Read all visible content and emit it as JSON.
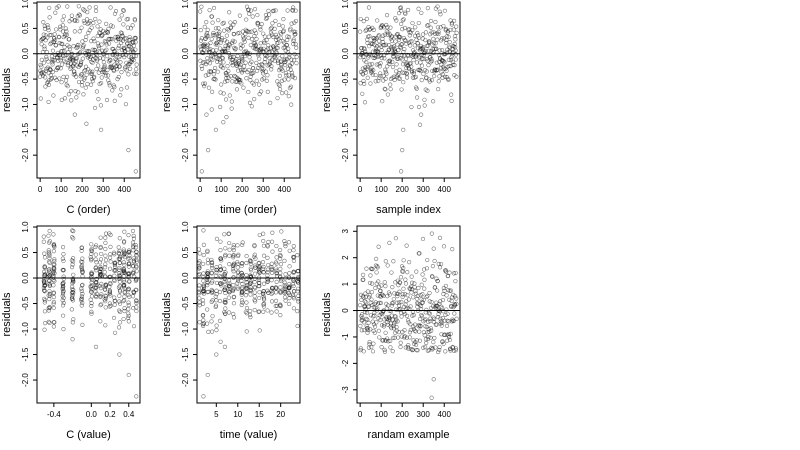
{
  "chart_data": [
    {
      "type": "scatter",
      "xlabel": "C (order)",
      "ylabel": "residuals",
      "xlim": [
        -15,
        475
      ],
      "ylim": [
        -2.45,
        1.02
      ],
      "x_ticks": [
        0,
        100,
        200,
        300,
        400
      ],
      "y_ticks": [
        -2.0,
        -1.5,
        -1.0,
        -0.5,
        0.0,
        0.5,
        1.0
      ],
      "y_tick_labels": [
        "-2.0",
        "-1.5",
        "-1.0",
        "-0.5",
        "0.0",
        "0.5",
        "1.0"
      ],
      "hline": 0,
      "point_count": 460,
      "x_mode": "index",
      "outliers": [
        [
          290,
          -1.5
        ],
        [
          165,
          -1.2
        ],
        [
          220,
          -1.38
        ],
        [
          420,
          -1.9
        ],
        [
          455,
          -2.32
        ],
        [
          40,
          -0.95
        ],
        [
          355,
          -0.93
        ],
        [
          148,
          -0.92
        ]
      ],
      "seed": 11,
      "spread": 0.4
    },
    {
      "type": "scatter",
      "xlabel": "time (order)",
      "ylabel": "residuals",
      "xlim": [
        -15,
        475
      ],
      "ylim": [
        -2.45,
        1.02
      ],
      "x_ticks": [
        0,
        100,
        200,
        300,
        400
      ],
      "y_ticks": [
        -2.0,
        -1.5,
        -1.0,
        -0.5,
        0.0,
        0.5,
        1.0
      ],
      "y_tick_labels": [
        "-2.0",
        "-1.5",
        "-1.0",
        "-0.5",
        "0.0",
        "0.5",
        "1.0"
      ],
      "hline": 0,
      "point_count": 460,
      "x_mode": "index",
      "outliers": [
        [
          8,
          -2.32
        ],
        [
          38,
          -1.9
        ],
        [
          75,
          -1.5
        ],
        [
          110,
          -1.35
        ],
        [
          125,
          -1.25
        ],
        [
          95,
          -1.05
        ],
        [
          55,
          -1.1
        ],
        [
          30,
          -1.2
        ]
      ],
      "seed": 23,
      "spread": 0.42
    },
    {
      "type": "scatter",
      "xlabel": "sample index",
      "ylabel": "residuals",
      "xlim": [
        -15,
        475
      ],
      "ylim": [
        -2.45,
        1.02
      ],
      "x_ticks": [
        0,
        100,
        200,
        300,
        400
      ],
      "y_ticks": [
        -2.0,
        -1.5,
        -1.0,
        -0.5,
        0.0,
        0.5,
        1.0
      ],
      "y_tick_labels": [
        "-2.0",
        "-1.5",
        "-1.0",
        "-0.5",
        "0.0",
        "0.5",
        "1.0"
      ],
      "hline": 0,
      "point_count": 460,
      "x_mode": "index",
      "outliers": [
        [
          195,
          -2.32
        ],
        [
          200,
          -1.9
        ],
        [
          205,
          -1.5
        ],
        [
          285,
          -1.4
        ],
        [
          290,
          -1.2
        ],
        [
          280,
          -1.05
        ],
        [
          190,
          0.9
        ],
        [
          195,
          0.85
        ],
        [
          185,
          0.8
        ]
      ],
      "seed": 37,
      "spread": 0.38
    },
    {
      "type": "scatter",
      "xlabel": "C (value)",
      "ylabel": "residuals",
      "xlim": [
        -0.58,
        0.52
      ],
      "ylim": [
        -2.45,
        1.02
      ],
      "x_ticks": [
        -0.4,
        0.0,
        0.2,
        0.4
      ],
      "x_tick_labels": [
        "-0.4",
        "0.0",
        "0.2",
        "0.4"
      ],
      "y_ticks": [
        -2.0,
        -1.5,
        -1.0,
        -0.5,
        0.0,
        0.5,
        1.0
      ],
      "y_tick_labels": [
        "-2.0",
        "-1.5",
        "-1.0",
        "-0.5",
        "0.0",
        "0.5",
        "1.0"
      ],
      "hline": 0,
      "point_count": 460,
      "x_mode": "columns",
      "x_columns": [
        -0.5,
        -0.45,
        -0.4,
        -0.3,
        -0.2,
        -0.1,
        0.0,
        0.05,
        0.1,
        0.15,
        0.2,
        0.25,
        0.3,
        0.35,
        0.4,
        0.45,
        0.48
      ],
      "x_jitter": 0.008,
      "outliers": [
        [
          0.4,
          -1.9
        ],
        [
          0.48,
          -2.32
        ],
        [
          -0.2,
          -1.2
        ],
        [
          0.05,
          -1.35
        ],
        [
          0.3,
          -1.5
        ],
        [
          -0.4,
          -0.95
        ]
      ],
      "seed": 53,
      "spread": 0.4
    },
    {
      "type": "scatter",
      "xlabel": "time (value)",
      "ylabel": "residuals",
      "xlim": [
        0.5,
        24.5
      ],
      "ylim": [
        -2.45,
        1.02
      ],
      "x_ticks": [
        5,
        10,
        15,
        20
      ],
      "y_ticks": [
        -2.0,
        -1.5,
        -1.0,
        -0.5,
        0.0,
        0.5,
        1.0
      ],
      "y_tick_labels": [
        "-2.0",
        "-1.5",
        "-1.0",
        "-0.5",
        "0.0",
        "0.5",
        "1.0"
      ],
      "hline": 0,
      "point_count": 460,
      "x_mode": "columns",
      "x_columns": [
        1,
        2,
        3,
        4,
        5,
        6,
        7,
        8,
        9,
        10,
        11,
        12,
        13,
        14,
        15,
        16,
        17,
        18,
        19,
        20,
        21,
        22,
        23,
        24
      ],
      "x_jitter": 0.15,
      "outliers": [
        [
          2,
          -2.32
        ],
        [
          3,
          -1.9
        ],
        [
          5,
          -1.5
        ],
        [
          7,
          -1.35
        ],
        [
          6,
          -1.25
        ],
        [
          4,
          -1.05
        ]
      ],
      "seed": 71,
      "spread": 0.42
    },
    {
      "type": "scatter",
      "xlabel": "randam example",
      "ylabel": "residuals",
      "xlim": [
        -15,
        475
      ],
      "ylim": [
        -3.5,
        3.2
      ],
      "x_ticks": [
        0,
        100,
        200,
        300,
        400
      ],
      "y_ticks": [
        -3,
        -2,
        -1,
        0,
        1,
        2,
        3
      ],
      "y_tick_labels": [
        "-3",
        "-2",
        "-1",
        "0",
        "1",
        "2",
        "3"
      ],
      "hline": 0,
      "point_count": 460,
      "x_mode": "index",
      "outliers": [
        [
          340,
          -3.3
        ],
        [
          380,
          2.75
        ],
        [
          350,
          -2.6
        ]
      ],
      "seed": 97,
      "spread": 1.0
    }
  ]
}
